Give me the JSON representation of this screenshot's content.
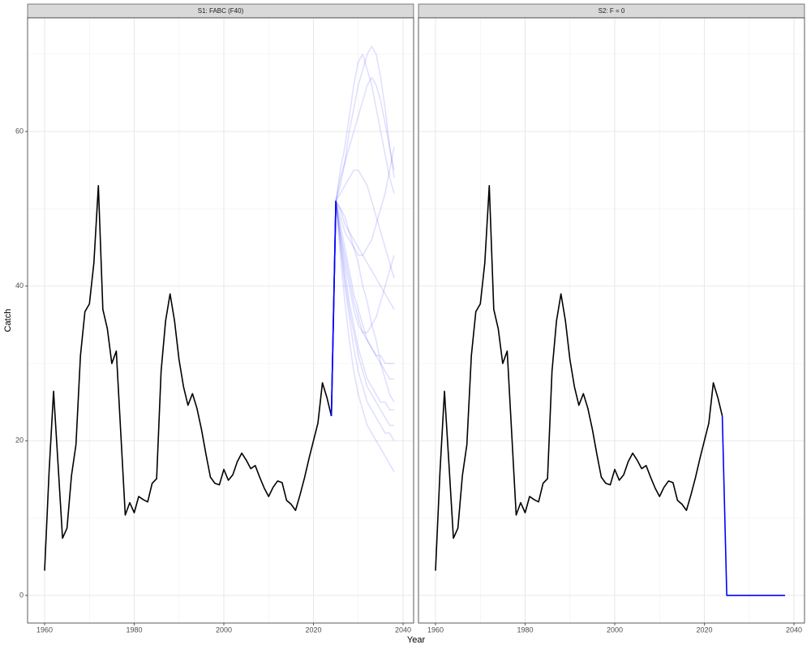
{
  "chart_data": [
    {
      "type": "line",
      "title": "S1: FABC (F40)",
      "xlabel": "Year",
      "ylabel": "Catch",
      "xlim": [
        1956.2,
        2042.35
      ],
      "ylim": [
        -3.57,
        74.7
      ],
      "xticks": [
        1960,
        1980,
        2000,
        2020,
        2040
      ],
      "yticks": [
        0,
        20,
        40,
        60
      ],
      "grid": true,
      "series": [
        {
          "color": "#000000",
          "opacity": 1,
          "x": [
            1960,
            1961,
            1962,
            1963,
            1964,
            1965,
            1966,
            1967,
            1968,
            1969,
            1970,
            1971,
            1972,
            1973,
            1974,
            1975,
            1976,
            1977,
            1978,
            1979,
            1980,
            1981,
            1982,
            1983,
            1984,
            1985,
            1986,
            1987,
            1988,
            1989,
            1990,
            1991,
            1992,
            1993,
            1994,
            1995,
            1996,
            1997,
            1998,
            1999,
            2000,
            2001,
            2002,
            2003,
            2004,
            2005,
            2006,
            2007,
            2008,
            2009,
            2010,
            2011,
            2012,
            2013,
            2014,
            2015,
            2016,
            2017,
            2018,
            2019,
            2020,
            2021,
            2022,
            2023,
            2024
          ],
          "values": [
            3.2,
            16,
            26.4,
            17,
            7.4,
            8.7,
            15.5,
            19.5,
            31,
            36.7,
            37.7,
            43,
            53,
            37,
            34.5,
            30,
            31.6,
            21,
            10.4,
            12,
            10.7,
            12.8,
            12.4,
            12.1,
            14.5,
            15.1,
            29,
            35.5,
            39,
            35.5,
            30.5,
            27,
            24.6,
            26.1,
            24.2,
            21.5,
            18.3,
            15.3,
            14.5,
            14.3,
            16.3,
            14.9,
            15.6,
            17.3,
            18.4,
            17.5,
            16.4,
            16.8,
            15.3,
            13.9,
            12.8,
            14,
            14.8,
            14.6,
            12.3,
            11.8,
            11,
            13,
            15.2,
            17.7,
            20,
            22.3,
            27.5,
            25.6,
            23.2
          ]
        },
        {
          "color": "#0000ff",
          "opacity": 0.12,
          "x": [
            2024,
            2025,
            2026,
            2027,
            2028,
            2029,
            2030,
            2031,
            2032,
            2033,
            2034,
            2035,
            2036,
            2037,
            2038
          ],
          "values": [
            23.2,
            51,
            55,
            58,
            62,
            66,
            69,
            70,
            68,
            66,
            63,
            60,
            57,
            54,
            52
          ]
        },
        {
          "color": "#0000ff",
          "opacity": 0.12,
          "x": [
            2024,
            2025,
            2026,
            2027,
            2028,
            2029,
            2030,
            2031,
            2032,
            2033,
            2034,
            2035,
            2036,
            2037,
            2038
          ],
          "values": [
            23.2,
            51,
            54,
            56,
            60,
            63,
            66,
            68,
            70,
            71,
            70,
            67,
            63,
            58,
            54
          ]
        },
        {
          "color": "#0000ff",
          "opacity": 0.12,
          "x": [
            2024,
            2025,
            2026,
            2027,
            2028,
            2029,
            2030,
            2031,
            2032,
            2033,
            2034,
            2035,
            2036,
            2037,
            2038
          ],
          "values": [
            23.2,
            51,
            50,
            48,
            47,
            46,
            45,
            44,
            43,
            42,
            41,
            40,
            39,
            38,
            37
          ]
        },
        {
          "color": "#0000ff",
          "opacity": 0.12,
          "x": [
            2024,
            2025,
            2026,
            2027,
            2028,
            2029,
            2030,
            2031,
            2032,
            2033,
            2034,
            2035,
            2036,
            2037,
            2038
          ],
          "values": [
            23.2,
            51,
            48,
            45,
            42,
            39,
            37,
            35,
            33,
            32,
            31,
            30,
            29,
            28,
            28
          ]
        },
        {
          "color": "#0000ff",
          "opacity": 0.12,
          "x": [
            2024,
            2025,
            2026,
            2027,
            2028,
            2029,
            2030,
            2031,
            2032,
            2033,
            2034,
            2035,
            2036,
            2037,
            2038
          ],
          "values": [
            23.2,
            51,
            46,
            42,
            38,
            35,
            32,
            30,
            28,
            27,
            26,
            25,
            25,
            24,
            24
          ]
        },
        {
          "color": "#0000ff",
          "opacity": 0.12,
          "x": [
            2024,
            2025,
            2026,
            2027,
            2028,
            2029,
            2030,
            2031,
            2032,
            2033,
            2034,
            2035,
            2036,
            2037,
            2038
          ],
          "values": [
            23.2,
            51,
            45,
            40,
            36,
            32,
            29,
            27,
            25,
            24,
            23,
            22,
            21,
            21,
            20
          ]
        },
        {
          "color": "#0000ff",
          "opacity": 0.12,
          "x": [
            2024,
            2025,
            2026,
            2027,
            2028,
            2029,
            2030,
            2031,
            2032,
            2033,
            2034,
            2035,
            2036,
            2037,
            2038
          ],
          "values": [
            23.2,
            51,
            47,
            44,
            41,
            38,
            36,
            34,
            33,
            32,
            31,
            31,
            30,
            30,
            30
          ]
        },
        {
          "color": "#0000ff",
          "opacity": 0.12,
          "x": [
            2024,
            2025,
            2026,
            2027,
            2028,
            2029,
            2030,
            2031,
            2032,
            2033,
            2034,
            2035,
            2036,
            2037,
            2038
          ],
          "values": [
            23.2,
            51,
            49,
            47,
            46,
            45,
            44,
            44,
            45,
            46,
            48,
            50,
            52,
            55,
            58
          ]
        },
        {
          "color": "#0000ff",
          "opacity": 0.12,
          "x": [
            2024,
            2025,
            2026,
            2027,
            2028,
            2029,
            2030,
            2031,
            2032,
            2033,
            2034,
            2035,
            2036,
            2037,
            2038
          ],
          "values": [
            23.2,
            51,
            44,
            38,
            33,
            29,
            26,
            24,
            22,
            21,
            20,
            19,
            18,
            17,
            16
          ]
        },
        {
          "color": "#0000ff",
          "opacity": 0.12,
          "x": [
            2024,
            2025,
            2026,
            2027,
            2028,
            2029,
            2030,
            2031,
            2032,
            2033,
            2034,
            2035,
            2036,
            2037,
            2038
          ],
          "values": [
            23.2,
            51,
            47,
            43,
            40,
            37,
            35,
            34,
            34,
            35,
            36,
            38,
            40,
            42,
            44
          ]
        },
        {
          "color": "#0000ff",
          "opacity": 0.12,
          "x": [
            2024,
            2025,
            2026,
            2027,
            2028,
            2029,
            2030,
            2031,
            2032,
            2033,
            2034,
            2035,
            2036,
            2037,
            2038
          ],
          "values": [
            23.2,
            51,
            52,
            53,
            54,
            55,
            55,
            54,
            53,
            51,
            49,
            47,
            45,
            43,
            41
          ]
        },
        {
          "color": "#0000ff",
          "opacity": 0.12,
          "x": [
            2024,
            2025,
            2026,
            2027,
            2028,
            2029,
            2030,
            2031,
            2032,
            2033,
            2034,
            2035,
            2036,
            2037,
            2038
          ],
          "values": [
            23.2,
            51,
            46,
            41,
            37,
            34,
            31,
            29,
            27,
            26,
            25,
            24,
            23,
            22,
            22
          ]
        },
        {
          "color": "#0000ff",
          "opacity": 0.12,
          "x": [
            2024,
            2025,
            2026,
            2027,
            2028,
            2029,
            2030,
            2031,
            2032,
            2033,
            2034,
            2035,
            2036,
            2037,
            2038
          ],
          "values": [
            23.2,
            51,
            50,
            49,
            47,
            45,
            43,
            40,
            38,
            35,
            33,
            30,
            28,
            26,
            25
          ]
        },
        {
          "color": "#0000ff",
          "opacity": 0.12,
          "x": [
            2024,
            2025,
            2026,
            2027,
            2028,
            2029,
            2030,
            2031,
            2032,
            2033,
            2034,
            2035,
            2036,
            2037,
            2038
          ],
          "values": [
            23.2,
            51,
            53,
            56,
            58,
            60,
            62,
            64,
            66,
            67,
            66,
            64,
            61,
            58,
            55
          ]
        },
        {
          "color": "#0000ff",
          "opacity": 1,
          "x": [
            2024,
            2025
          ],
          "values": [
            23.2,
            51
          ]
        }
      ]
    },
    {
      "type": "line",
      "title": "S2: F = 0",
      "xlim": [
        1956.2,
        2042.35
      ],
      "ylim": [
        -3.57,
        74.7
      ],
      "xticks": [
        1960,
        1980,
        2000,
        2020,
        2040
      ],
      "yticks": [
        0,
        20,
        40,
        60
      ],
      "grid": true,
      "series": [
        {
          "color": "#000000",
          "opacity": 1,
          "x": [
            1960,
            1961,
            1962,
            1963,
            1964,
            1965,
            1966,
            1967,
            1968,
            1969,
            1970,
            1971,
            1972,
            1973,
            1974,
            1975,
            1976,
            1977,
            1978,
            1979,
            1980,
            1981,
            1982,
            1983,
            1984,
            1985,
            1986,
            1987,
            1988,
            1989,
            1990,
            1991,
            1992,
            1993,
            1994,
            1995,
            1996,
            1997,
            1998,
            1999,
            2000,
            2001,
            2002,
            2003,
            2004,
            2005,
            2006,
            2007,
            2008,
            2009,
            2010,
            2011,
            2012,
            2013,
            2014,
            2015,
            2016,
            2017,
            2018,
            2019,
            2020,
            2021,
            2022,
            2023,
            2024
          ],
          "values": [
            3.2,
            16,
            26.4,
            17,
            7.4,
            8.7,
            15.5,
            19.5,
            31,
            36.7,
            37.7,
            43,
            53,
            37,
            34.5,
            30,
            31.6,
            21,
            10.4,
            12,
            10.7,
            12.8,
            12.4,
            12.1,
            14.5,
            15.1,
            29,
            35.5,
            39,
            35.5,
            30.5,
            27,
            24.6,
            26.1,
            24.2,
            21.5,
            18.3,
            15.3,
            14.5,
            14.3,
            16.3,
            14.9,
            15.6,
            17.3,
            18.4,
            17.5,
            16.4,
            16.8,
            15.3,
            13.9,
            12.8,
            14,
            14.8,
            14.6,
            12.3,
            11.8,
            11,
            13,
            15.2,
            17.7,
            20,
            22.3,
            27.5,
            25.6,
            23.2
          ]
        },
        {
          "color": "#0000ff",
          "opacity": 1,
          "x": [
            2024,
            2025,
            2026,
            2027,
            2028,
            2029,
            2030,
            2031,
            2032,
            2033,
            2034,
            2035,
            2036,
            2037,
            2038
          ],
          "values": [
            23.2,
            0,
            0,
            0,
            0,
            0,
            0,
            0,
            0,
            0,
            0,
            0,
            0,
            0,
            0
          ]
        }
      ]
    }
  ]
}
